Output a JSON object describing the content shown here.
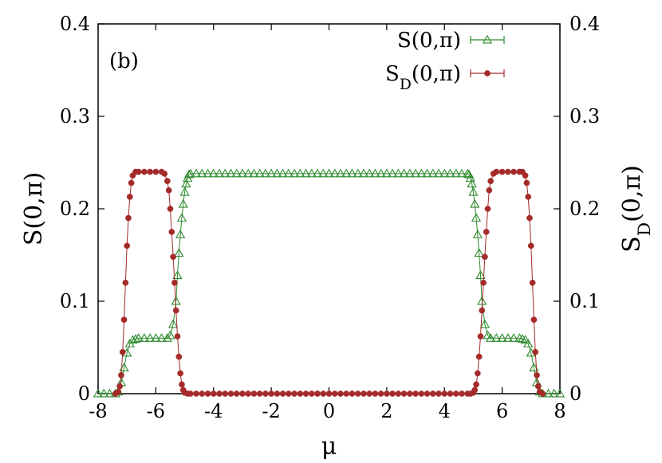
{
  "chart_data": {
    "type": "scatter",
    "annotation": "(b)",
    "xlabel": "μ",
    "ylabel": "S(0,π)",
    "y2label": "S_D(0,π)",
    "xlim": [
      -8,
      8
    ],
    "ylim": [
      0,
      0.4
    ],
    "y2lim": [
      0,
      0.4
    ],
    "xticks": [
      "-8",
      "-6",
      "-4",
      "-2",
      "0",
      "2",
      "4",
      "6",
      "8"
    ],
    "yticks": [
      "0",
      "0.1",
      "0.2",
      "0.3",
      "0.4"
    ],
    "y2ticks": [
      "0",
      "0.1",
      "0.2",
      "0.3",
      "0.4"
    ],
    "grid": false,
    "legend_position": "top-right",
    "series": [
      {
        "name": "S(0,π)",
        "color": "#2e8b2e",
        "marker": "open-triangle",
        "points": [
          [
            -8.0,
            0.0
          ],
          [
            -7.8,
            0.0
          ],
          [
            -7.6,
            0.0
          ],
          [
            -7.4,
            0.0
          ],
          [
            -7.3,
            0.002
          ],
          [
            -7.2,
            0.012
          ],
          [
            -7.1,
            0.028
          ],
          [
            -7.0,
            0.044
          ],
          [
            -6.9,
            0.054
          ],
          [
            -6.8,
            0.058
          ],
          [
            -6.7,
            0.059
          ],
          [
            -6.6,
            0.06
          ],
          [
            -6.4,
            0.06
          ],
          [
            -6.2,
            0.06
          ],
          [
            -6.0,
            0.06
          ],
          [
            -5.8,
            0.06
          ],
          [
            -5.6,
            0.06
          ],
          [
            -5.5,
            0.063
          ],
          [
            -5.4,
            0.075
          ],
          [
            -5.3,
            0.1
          ],
          [
            -5.25,
            0.128
          ],
          [
            -5.2,
            0.152
          ],
          [
            -5.15,
            0.172
          ],
          [
            -5.1,
            0.19
          ],
          [
            -5.05,
            0.205
          ],
          [
            -5.0,
            0.218
          ],
          [
            -4.95,
            0.227
          ],
          [
            -4.9,
            0.233
          ],
          [
            -4.85,
            0.237
          ],
          [
            -4.8,
            0.238
          ],
          [
            -4.6,
            0.238
          ],
          [
            -4.4,
            0.238
          ],
          [
            -4.2,
            0.238
          ],
          [
            -4.0,
            0.238
          ],
          [
            -3.8,
            0.238
          ],
          [
            -3.6,
            0.238
          ],
          [
            -3.4,
            0.238
          ],
          [
            -3.2,
            0.238
          ],
          [
            -3.0,
            0.238
          ],
          [
            -2.8,
            0.238
          ],
          [
            -2.6,
            0.238
          ],
          [
            -2.4,
            0.238
          ],
          [
            -2.2,
            0.238
          ],
          [
            -2.0,
            0.238
          ],
          [
            -1.8,
            0.238
          ],
          [
            -1.6,
            0.238
          ],
          [
            -1.4,
            0.238
          ],
          [
            -1.2,
            0.238
          ],
          [
            -1.0,
            0.238
          ],
          [
            -0.8,
            0.238
          ],
          [
            -0.6,
            0.238
          ],
          [
            -0.4,
            0.238
          ],
          [
            -0.2,
            0.238
          ],
          [
            0.0,
            0.238
          ],
          [
            0.2,
            0.238
          ],
          [
            0.4,
            0.238
          ],
          [
            0.6,
            0.238
          ],
          [
            0.8,
            0.238
          ],
          [
            1.0,
            0.238
          ],
          [
            1.2,
            0.238
          ],
          [
            1.4,
            0.238
          ],
          [
            1.6,
            0.238
          ],
          [
            1.8,
            0.238
          ],
          [
            2.0,
            0.238
          ],
          [
            2.2,
            0.238
          ],
          [
            2.4,
            0.238
          ],
          [
            2.6,
            0.238
          ],
          [
            2.8,
            0.238
          ],
          [
            3.0,
            0.238
          ],
          [
            3.2,
            0.238
          ],
          [
            3.4,
            0.238
          ],
          [
            3.6,
            0.238
          ],
          [
            3.8,
            0.238
          ],
          [
            4.0,
            0.238
          ],
          [
            4.2,
            0.238
          ],
          [
            4.4,
            0.238
          ],
          [
            4.6,
            0.238
          ],
          [
            4.8,
            0.238
          ],
          [
            4.85,
            0.237
          ],
          [
            4.9,
            0.233
          ],
          [
            4.95,
            0.227
          ],
          [
            5.0,
            0.218
          ],
          [
            5.05,
            0.205
          ],
          [
            5.1,
            0.19
          ],
          [
            5.15,
            0.172
          ],
          [
            5.2,
            0.152
          ],
          [
            5.25,
            0.128
          ],
          [
            5.3,
            0.1
          ],
          [
            5.4,
            0.075
          ],
          [
            5.5,
            0.063
          ],
          [
            5.6,
            0.06
          ],
          [
            5.8,
            0.06
          ],
          [
            6.0,
            0.06
          ],
          [
            6.2,
            0.06
          ],
          [
            6.4,
            0.06
          ],
          [
            6.6,
            0.06
          ],
          [
            6.7,
            0.059
          ],
          [
            6.8,
            0.058
          ],
          [
            6.9,
            0.054
          ],
          [
            7.0,
            0.044
          ],
          [
            7.1,
            0.028
          ],
          [
            7.2,
            0.012
          ],
          [
            7.3,
            0.002
          ],
          [
            7.4,
            0.0
          ],
          [
            7.6,
            0.0
          ],
          [
            7.8,
            0.0
          ],
          [
            8.0,
            0.0
          ]
        ]
      },
      {
        "name": "S_D(0,π)",
        "color": "#a52a2a",
        "marker": "filled-circle",
        "points": [
          [
            -7.4,
            0.0
          ],
          [
            -7.3,
            0.002
          ],
          [
            -7.25,
            0.008
          ],
          [
            -7.2,
            0.02
          ],
          [
            -7.15,
            0.045
          ],
          [
            -7.1,
            0.08
          ],
          [
            -7.05,
            0.12
          ],
          [
            -7.0,
            0.16
          ],
          [
            -6.95,
            0.19
          ],
          [
            -6.9,
            0.213
          ],
          [
            -6.85,
            0.228
          ],
          [
            -6.8,
            0.236
          ],
          [
            -6.7,
            0.24
          ],
          [
            -6.6,
            0.24
          ],
          [
            -6.4,
            0.24
          ],
          [
            -6.2,
            0.24
          ],
          [
            -6.0,
            0.24
          ],
          [
            -5.8,
            0.24
          ],
          [
            -5.7,
            0.238
          ],
          [
            -5.6,
            0.23
          ],
          [
            -5.55,
            0.22
          ],
          [
            -5.5,
            0.2
          ],
          [
            -5.45,
            0.175
          ],
          [
            -5.4,
            0.148
          ],
          [
            -5.35,
            0.12
          ],
          [
            -5.3,
            0.09
          ],
          [
            -5.25,
            0.062
          ],
          [
            -5.2,
            0.04
          ],
          [
            -5.15,
            0.022
          ],
          [
            -5.1,
            0.01
          ],
          [
            -5.05,
            0.004
          ],
          [
            -5.0,
            0.001
          ],
          [
            -4.9,
            0.0
          ],
          [
            -4.8,
            0.0
          ],
          [
            -4.6,
            0.0
          ],
          [
            -4.4,
            0.0
          ],
          [
            -4.2,
            0.0
          ],
          [
            -4.0,
            0.0
          ],
          [
            -3.8,
            0.0
          ],
          [
            -3.6,
            0.0
          ],
          [
            -3.4,
            0.0
          ],
          [
            -3.2,
            0.0
          ],
          [
            -3.0,
            0.0
          ],
          [
            -2.8,
            0.0
          ],
          [
            -2.6,
            0.0
          ],
          [
            -2.4,
            0.0
          ],
          [
            -2.2,
            0.0
          ],
          [
            -2.0,
            0.0
          ],
          [
            -1.8,
            0.0
          ],
          [
            -1.6,
            0.0
          ],
          [
            -1.4,
            0.0
          ],
          [
            -1.2,
            0.0
          ],
          [
            -1.0,
            0.0
          ],
          [
            -0.8,
            0.0
          ],
          [
            -0.6,
            0.0
          ],
          [
            -0.4,
            0.0
          ],
          [
            -0.2,
            0.0
          ],
          [
            0.0,
            0.0
          ],
          [
            0.2,
            0.0
          ],
          [
            0.4,
            0.0
          ],
          [
            0.6,
            0.0
          ],
          [
            0.8,
            0.0
          ],
          [
            1.0,
            0.0
          ],
          [
            1.2,
            0.0
          ],
          [
            1.4,
            0.0
          ],
          [
            1.6,
            0.0
          ],
          [
            1.8,
            0.0
          ],
          [
            2.0,
            0.0
          ],
          [
            2.2,
            0.0
          ],
          [
            2.4,
            0.0
          ],
          [
            2.6,
            0.0
          ],
          [
            2.8,
            0.0
          ],
          [
            3.0,
            0.0
          ],
          [
            3.2,
            0.0
          ],
          [
            3.4,
            0.0
          ],
          [
            3.6,
            0.0
          ],
          [
            3.8,
            0.0
          ],
          [
            4.0,
            0.0
          ],
          [
            4.2,
            0.0
          ],
          [
            4.4,
            0.0
          ],
          [
            4.6,
            0.0
          ],
          [
            4.8,
            0.0
          ],
          [
            4.9,
            0.0
          ],
          [
            5.0,
            0.001
          ],
          [
            5.05,
            0.004
          ],
          [
            5.1,
            0.01
          ],
          [
            5.15,
            0.022
          ],
          [
            5.2,
            0.04
          ],
          [
            5.25,
            0.062
          ],
          [
            5.3,
            0.09
          ],
          [
            5.35,
            0.12
          ],
          [
            5.4,
            0.148
          ],
          [
            5.45,
            0.175
          ],
          [
            5.5,
            0.2
          ],
          [
            5.55,
            0.22
          ],
          [
            5.6,
            0.23
          ],
          [
            5.7,
            0.238
          ],
          [
            5.8,
            0.24
          ],
          [
            6.0,
            0.24
          ],
          [
            6.2,
            0.24
          ],
          [
            6.4,
            0.24
          ],
          [
            6.6,
            0.24
          ],
          [
            6.7,
            0.24
          ],
          [
            6.8,
            0.236
          ],
          [
            6.85,
            0.228
          ],
          [
            6.9,
            0.213
          ],
          [
            6.95,
            0.19
          ],
          [
            7.0,
            0.16
          ],
          [
            7.05,
            0.12
          ],
          [
            7.1,
            0.08
          ],
          [
            7.15,
            0.045
          ],
          [
            7.2,
            0.02
          ],
          [
            7.25,
            0.008
          ],
          [
            7.3,
            0.002
          ],
          [
            7.4,
            0.0
          ]
        ]
      }
    ]
  }
}
